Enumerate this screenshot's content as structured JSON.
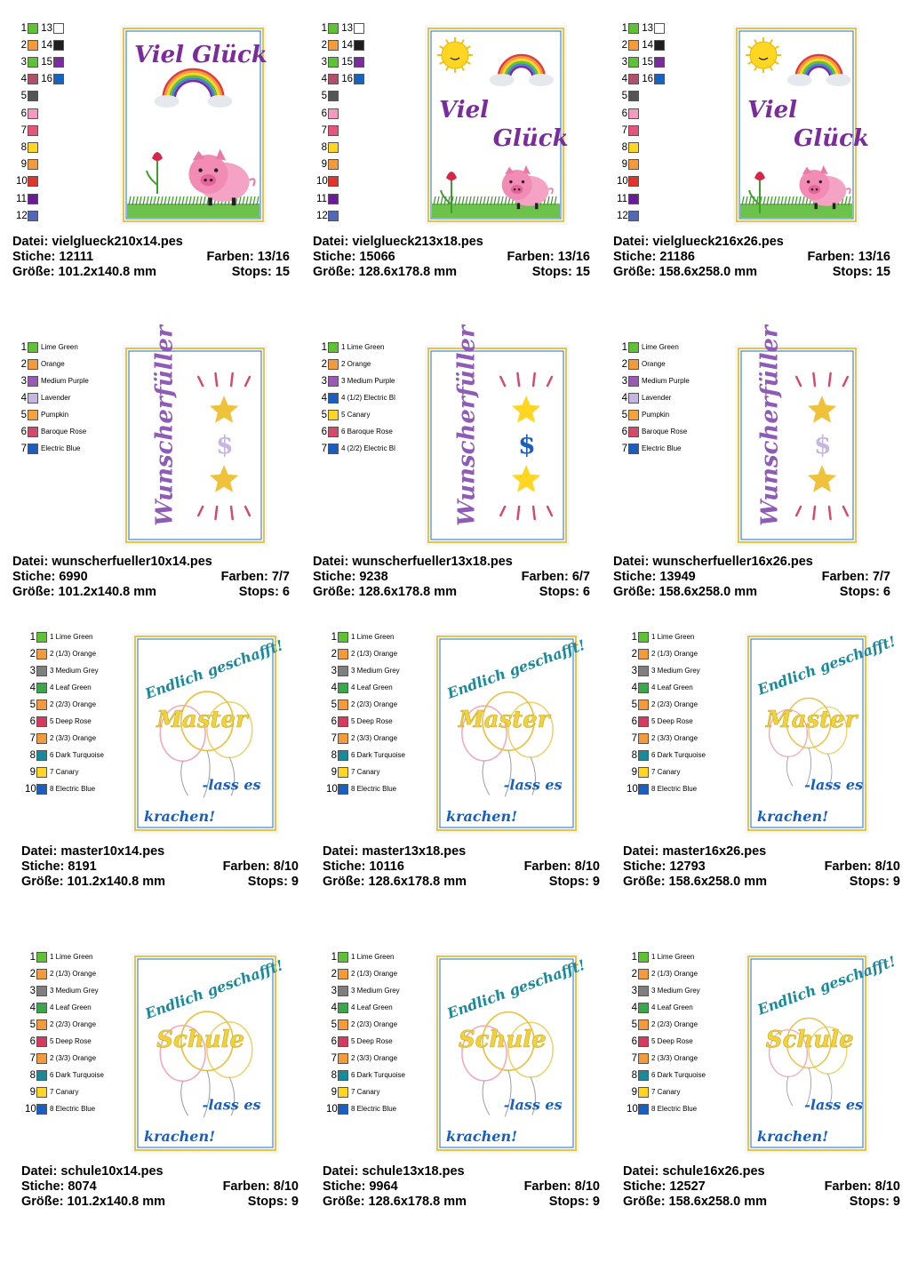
{
  "groups": [
    {
      "key": "vielglueck",
      "legend_type": "numbered",
      "legend": [
        {
          "n": "1",
          "color": "#5ec234",
          "n2": "13",
          "color2": "#ffffff"
        },
        {
          "n": "2",
          "color": "#f39a3b",
          "n2": "14",
          "color2": "#1e1e1e"
        },
        {
          "n": "3",
          "color": "#5ec234",
          "n2": "15",
          "color2": "#7a2c9c"
        },
        {
          "n": "4",
          "color": "#b0506a",
          "n2": "16",
          "color2": "#1565c0"
        },
        {
          "n": "5",
          "color": "#555555"
        },
        {
          "n": "6",
          "color": "#f49ac1"
        },
        {
          "n": "7",
          "color": "#e8547a"
        },
        {
          "n": "8",
          "color": "#ffd622"
        },
        {
          "n": "9",
          "color": "#f39a3b"
        },
        {
          "n": "10",
          "color": "#e0342c"
        },
        {
          "n": "11",
          "color": "#6a1b9a"
        },
        {
          "n": "12",
          "color": "#5167b8"
        }
      ],
      "items": [
        {
          "file": "Datei: vielglueck210x14.pes",
          "stitches": "Stiche: 12111",
          "colors": "Farben: 13/16",
          "size": "Größe: 101.2x140.8 mm",
          "stops": "Stops: 15"
        },
        {
          "file": "Datei: vielglueck213x18.pes",
          "stitches": "Stiche: 15066",
          "colors": "Farben: 13/16",
          "size": "Größe: 128.6x178.8 mm",
          "stops": "Stops: 15"
        },
        {
          "file": "Datei: vielglueck216x26.pes",
          "stitches": "Stiche: 21186",
          "colors": "Farben: 13/16",
          "size": "Größe: 158.6x258.0 mm",
          "stops": "Stops: 15"
        }
      ],
      "design_text_1": "Viel Glück",
      "design_text_2a": "Viel",
      "design_text_2b": "Glück"
    },
    {
      "key": "wunscherfueller",
      "legend_type": "named",
      "legends": [
        [
          {
            "n": "1",
            "color": "#5ec234",
            "name": "Lime Green"
          },
          {
            "n": "2",
            "color": "#f39a3b",
            "name": "Orange"
          },
          {
            "n": "3",
            "color": "#9b59b6",
            "name": "Medium Purple"
          },
          {
            "n": "4",
            "color": "#c7b6e2",
            "name": "Lavender"
          },
          {
            "n": "5",
            "color": "#f6a33a",
            "name": "Pumpkin"
          },
          {
            "n": "6",
            "color": "#d44a6a",
            "name": "Baroque Rose"
          },
          {
            "n": "7",
            "color": "#1a5fc0",
            "name": "Electric Blue"
          }
        ],
        [
          {
            "n": "1",
            "color": "#5ec234",
            "name": "1 Lime Green"
          },
          {
            "n": "2",
            "color": "#f39a3b",
            "name": "2 Orange"
          },
          {
            "n": "3",
            "color": "#9b59b6",
            "name": "3 Medium Purple"
          },
          {
            "n": "4",
            "color": "#1a5fc0",
            "name": "4 (1/2) Electric Bl"
          },
          {
            "n": "5",
            "color": "#ffd622",
            "name": "5 Canary"
          },
          {
            "n": "6",
            "color": "#d44a6a",
            "name": "6 Baroque Rose"
          },
          {
            "n": "7",
            "color": "#1a5fc0",
            "name": "4 (2/2) Electric Bl"
          }
        ],
        [
          {
            "n": "1",
            "color": "#5ec234",
            "name": "Lime Green"
          },
          {
            "n": "2",
            "color": "#f39a3b",
            "name": "Orange"
          },
          {
            "n": "3",
            "color": "#9b59b6",
            "name": "Medium Purple"
          },
          {
            "n": "4",
            "color": "#c7b6e2",
            "name": "Lavender"
          },
          {
            "n": "5",
            "color": "#f6a33a",
            "name": "Pumpkin"
          },
          {
            "n": "6",
            "color": "#d44a6a",
            "name": "Baroque Rose"
          },
          {
            "n": "7",
            "color": "#1a5fc0",
            "name": "Electric Blue"
          }
        ]
      ],
      "items": [
        {
          "file": "Datei: wunscherfueller10x14.pes",
          "stitches": "Stiche: 6990",
          "colors": "Farben: 7/7",
          "size": "Größe: 101.2x140.8 mm",
          "stops": "Stops: 6"
        },
        {
          "file": "Datei: wunscherfueller13x18.pes",
          "stitches": "Stiche: 9238",
          "colors": "Farben: 6/7",
          "size": "Größe: 128.6x178.8 mm",
          "stops": "Stops: 6"
        },
        {
          "file": "Datei: wunscherfueller16x26.pes",
          "stitches": "Stiche: 13949",
          "colors": "Farben: 7/7",
          "size": "Größe: 158.6x258.0 mm",
          "stops": "Stops: 6"
        }
      ],
      "design_text": "Wunscherfüller"
    },
    {
      "key": "master",
      "legend_type": "named",
      "legend": [
        {
          "n": "1",
          "color": "#5ec234",
          "name": "1 Lime Green"
        },
        {
          "n": "2",
          "color": "#f39a3b",
          "name": "2 (1/3) Orange"
        },
        {
          "n": "3",
          "color": "#7f7f7f",
          "name": "3 Medium Grey"
        },
        {
          "n": "4",
          "color": "#3aa84a",
          "name": "4 Leaf Green"
        },
        {
          "n": "5",
          "color": "#f39a3b",
          "name": "2 (2/3) Orange"
        },
        {
          "n": "6",
          "color": "#d83a5f",
          "name": "5 Deep Rose"
        },
        {
          "n": "7",
          "color": "#f39a3b",
          "name": "2 (3/3) Orange"
        },
        {
          "n": "8",
          "color": "#1a8a9a",
          "name": "6 Dark Turquoise"
        },
        {
          "n": "9",
          "color": "#ffd622",
          "name": "7 Canary"
        },
        {
          "n": "10",
          "color": "#1a5fc0",
          "name": "8 Electric Blue"
        }
      ],
      "items": [
        {
          "file": "Datei: master10x14.pes",
          "stitches": "Stiche: 8191",
          "colors": "Farben: 8/10",
          "size": "Größe: 101.2x140.8 mm",
          "stops": "Stops: 9"
        },
        {
          "file": "Datei: master13x18.pes",
          "stitches": "Stiche: 10116",
          "colors": "Farben: 8/10",
          "size": "Größe: 128.6x178.8 mm",
          "stops": "Stops: 9"
        },
        {
          "file": "Datei: master16x26.pes",
          "stitches": "Stiche: 12793",
          "colors": "Farben: 8/10",
          "size": "Größe: 158.6x258.0 mm",
          "stops": "Stops: 9"
        }
      ],
      "design_top": "Endlich geschafft!",
      "design_mid": "Master",
      "design_low": "-lass es",
      "design_bot": "krachen!"
    },
    {
      "key": "schule",
      "legend_type": "named",
      "legend": [
        {
          "n": "1",
          "color": "#5ec234",
          "name": "1 Lime Green"
        },
        {
          "n": "2",
          "color": "#f39a3b",
          "name": "2 (1/3) Orange"
        },
        {
          "n": "3",
          "color": "#7f7f7f",
          "name": "3 Medium Grey"
        },
        {
          "n": "4",
          "color": "#3aa84a",
          "name": "4 Leaf Green"
        },
        {
          "n": "5",
          "color": "#f39a3b",
          "name": "2 (2/3) Orange"
        },
        {
          "n": "6",
          "color": "#d83a5f",
          "name": "5 Deep Rose"
        },
        {
          "n": "7",
          "color": "#f39a3b",
          "name": "2 (3/3) Orange"
        },
        {
          "n": "8",
          "color": "#1a8a9a",
          "name": "6 Dark Turquoise"
        },
        {
          "n": "9",
          "color": "#ffd622",
          "name": "7 Canary"
        },
        {
          "n": "10",
          "color": "#1a5fc0",
          "name": "8 Electric Blue"
        }
      ],
      "items": [
        {
          "file": "Datei: schule10x14.pes",
          "stitches": "Stiche: 8074",
          "colors": "Farben: 8/10",
          "size": "Größe: 101.2x140.8 mm",
          "stops": "Stops: 9"
        },
        {
          "file": "Datei: schule13x18.pes",
          "stitches": "Stiche: 9964",
          "colors": "Farben: 8/10",
          "size": "Größe: 128.6x178.8 mm",
          "stops": "Stops: 9"
        },
        {
          "file": "Datei: schule16x26.pes",
          "stitches": "Stiche: 12527",
          "colors": "Farben: 8/10",
          "size": "Größe: 158.6x258.0 mm",
          "stops": "Stops: 9"
        }
      ],
      "design_top": "Endlich geschafft!",
      "design_mid": "Schule",
      "design_low": "-lass es",
      "design_bot": "krachen!"
    }
  ]
}
